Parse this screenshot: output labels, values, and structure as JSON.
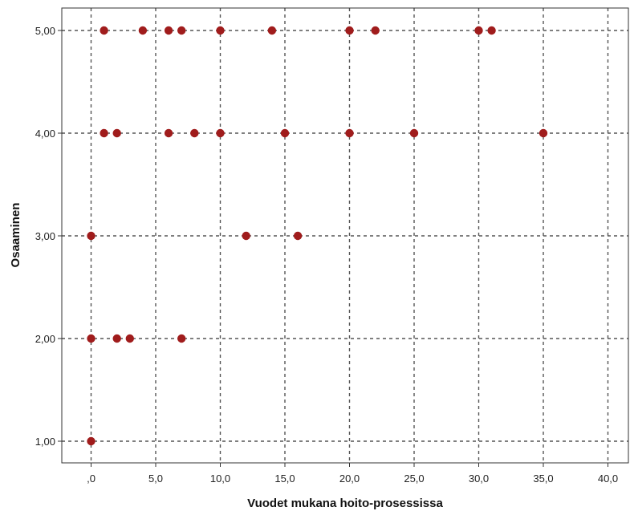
{
  "chart_data": {
    "type": "scatter",
    "xlabel": "Vuodet mukana hoito-prosessissa",
    "ylabel": "Osaaminen",
    "xlim": [
      -2.3,
      41.2
    ],
    "ylim": [
      0.8,
      5.2
    ],
    "x_ticks": [
      0,
      5,
      10,
      15,
      20,
      25,
      30,
      35,
      40
    ],
    "x_tick_labels": [
      ",0",
      "5,0",
      "10,0",
      "15,0",
      "20,0",
      "25,0",
      "30,0",
      "35,0",
      "40,0"
    ],
    "y_ticks": [
      1,
      2,
      3,
      4,
      5
    ],
    "y_tick_labels": [
      "1,00",
      "2,00",
      "3,00",
      "4,00",
      "5,00"
    ],
    "grid": true,
    "marker_color": "#a01c1c",
    "points": [
      {
        "x": 1,
        "y": 5
      },
      {
        "x": 4,
        "y": 5
      },
      {
        "x": 6,
        "y": 5
      },
      {
        "x": 7,
        "y": 5
      },
      {
        "x": 10,
        "y": 5
      },
      {
        "x": 14,
        "y": 5
      },
      {
        "x": 20,
        "y": 5
      },
      {
        "x": 22,
        "y": 5
      },
      {
        "x": 30,
        "y": 5
      },
      {
        "x": 31,
        "y": 5
      },
      {
        "x": 1,
        "y": 4
      },
      {
        "x": 2,
        "y": 4
      },
      {
        "x": 6,
        "y": 4
      },
      {
        "x": 8,
        "y": 4
      },
      {
        "x": 10,
        "y": 4
      },
      {
        "x": 15,
        "y": 4
      },
      {
        "x": 20,
        "y": 4
      },
      {
        "x": 25,
        "y": 4
      },
      {
        "x": 35,
        "y": 4
      },
      {
        "x": 0,
        "y": 3
      },
      {
        "x": 12,
        "y": 3
      },
      {
        "x": 16,
        "y": 3
      },
      {
        "x": 0,
        "y": 2
      },
      {
        "x": 2,
        "y": 2
      },
      {
        "x": 3,
        "y": 2
      },
      {
        "x": 7,
        "y": 2
      },
      {
        "x": 0,
        "y": 1
      }
    ]
  }
}
